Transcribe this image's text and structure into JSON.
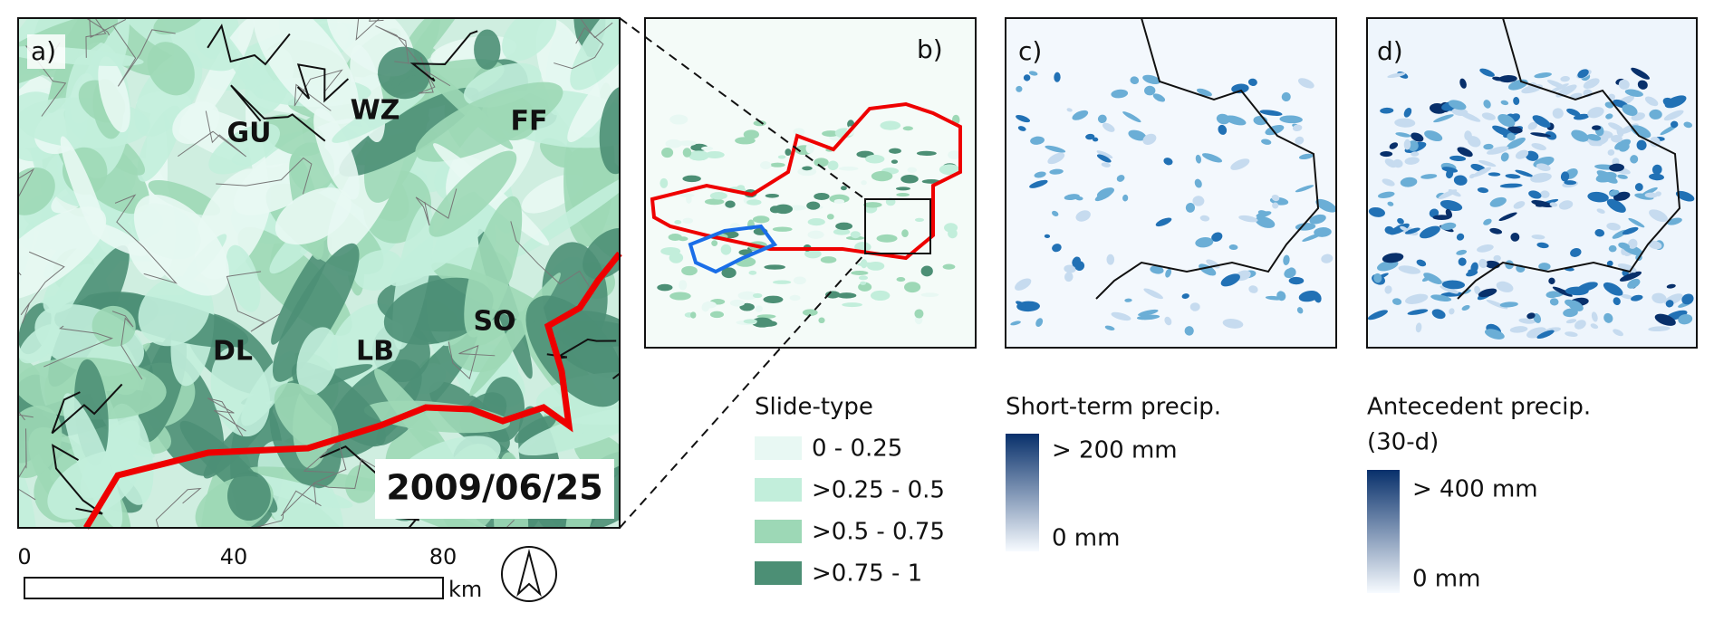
{
  "panels": [
    {
      "label": "a)"
    },
    {
      "label": "b)"
    },
    {
      "label": "c)"
    },
    {
      "label": "d)"
    }
  ],
  "panel_a": {
    "regions": [
      "GU",
      "WZ",
      "FF",
      "DL",
      "LB",
      "SO"
    ],
    "date": "2009/06/25",
    "scale_bar": {
      "ticks": [
        0,
        40,
        80
      ],
      "unit": "km"
    }
  },
  "legends": {
    "slide_type": {
      "title": "Slide-type",
      "classes": [
        {
          "label": "0 - 0.25",
          "color": "#e8f8f3"
        },
        {
          "label": ">0.25 - 0.5",
          "color": "#c2eedb"
        },
        {
          "label": ">0.5 - 0.75",
          "color": "#9dd8b6"
        },
        {
          "label": ">0.75 - 1",
          "color": "#4c8f75"
        }
      ]
    },
    "short_term": {
      "title": "Short-term precip.",
      "high": "> 200 mm",
      "low": "0 mm",
      "color_high": "#08306b",
      "color_low": "#f7fbff"
    },
    "antecedent": {
      "title_lines": [
        "Antecedent precip.",
        "(30-d)"
      ],
      "high": "> 400 mm",
      "low": "0 mm",
      "color_high": "#08306b",
      "color_low": "#f7fbff"
    }
  }
}
